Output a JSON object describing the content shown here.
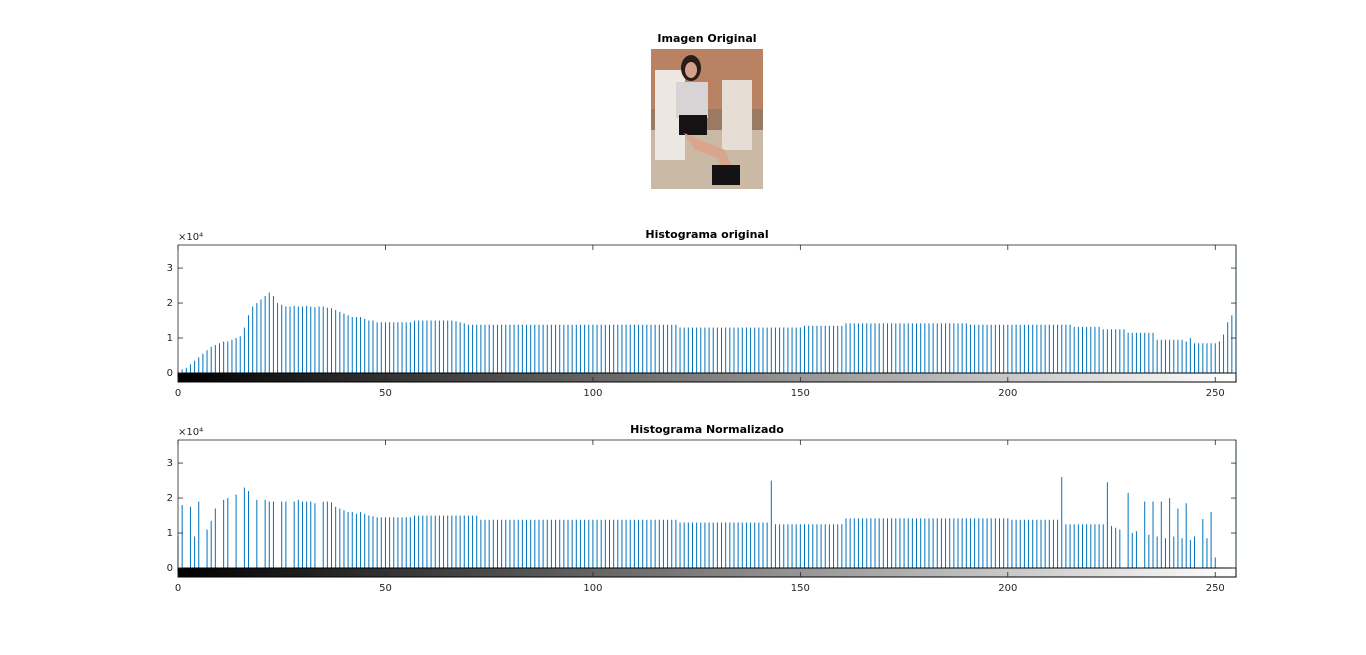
{
  "image": {
    "title": "Imagen Original"
  },
  "chart_data": [
    {
      "type": "stem",
      "title": "Histograma original",
      "color": "#0072bd",
      "y_exponent": "×10⁴",
      "xlim": [
        0,
        255
      ],
      "xticks": [
        0,
        50,
        100,
        150,
        200,
        250
      ],
      "ylim": [
        0,
        36600
      ],
      "yticks": [
        {
          "value": 0,
          "label": "0"
        },
        {
          "value": 10000,
          "label": "1"
        },
        {
          "value": 20000,
          "label": "2"
        },
        {
          "value": 30000,
          "label": "3"
        }
      ],
      "x": [
        0,
        1,
        2,
        3,
        4,
        5,
        6,
        7,
        8,
        9,
        10,
        11,
        12,
        13,
        14,
        15,
        16,
        17,
        18,
        19,
        20,
        21,
        22,
        23,
        24,
        25,
        26,
        27,
        28,
        29,
        30,
        31,
        32,
        33,
        34,
        35,
        36,
        37,
        38,
        39,
        40,
        41,
        42,
        43,
        44,
        45,
        46,
        47,
        48,
        49,
        50,
        51,
        52,
        53,
        54,
        55,
        56,
        57,
        58,
        59,
        60,
        61,
        62,
        63,
        64,
        65,
        66,
        67,
        68,
        69,
        70,
        71,
        72,
        73,
        74,
        75,
        76,
        77,
        78,
        79,
        80,
        81,
        82,
        83,
        84,
        85,
        86,
        87,
        88,
        89,
        90,
        91,
        92,
        93,
        94,
        95,
        96,
        97,
        98,
        99,
        100,
        101,
        102,
        103,
        104,
        105,
        106,
        107,
        108,
        109,
        110,
        111,
        112,
        113,
        114,
        115,
        116,
        117,
        118,
        119,
        120,
        121,
        122,
        123,
        124,
        125,
        126,
        127,
        128,
        129,
        130,
        131,
        132,
        133,
        134,
        135,
        136,
        137,
        138,
        139,
        140,
        141,
        142,
        143,
        144,
        145,
        146,
        147,
        148,
        149,
        150,
        151,
        152,
        153,
        154,
        155,
        156,
        157,
        158,
        159,
        160,
        161,
        162,
        163,
        164,
        165,
        166,
        167,
        168,
        169,
        170,
        171,
        172,
        173,
        174,
        175,
        176,
        177,
        178,
        179,
        180,
        181,
        182,
        183,
        184,
        185,
        186,
        187,
        188,
        189,
        190,
        191,
        192,
        193,
        194,
        195,
        196,
        197,
        198,
        199,
        200,
        201,
        202,
        203,
        204,
        205,
        206,
        207,
        208,
        209,
        210,
        211,
        212,
        213,
        214,
        215,
        216,
        217,
        218,
        219,
        220,
        221,
        222,
        223,
        224,
        225,
        226,
        227,
        228,
        229,
        230,
        231,
        232,
        233,
        234,
        235,
        236,
        237,
        238,
        239,
        240,
        241,
        242,
        243,
        244,
        245,
        246,
        247,
        248,
        249,
        250,
        251,
        252,
        253,
        254,
        255
      ],
      "values": [
        500,
        1000,
        1500,
        2500,
        3500,
        4500,
        5500,
        6500,
        7500,
        8000,
        8500,
        9000,
        9000,
        9500,
        10000,
        10500,
        13000,
        16500,
        19000,
        20000,
        21000,
        22000,
        23000,
        22000,
        20000,
        19500,
        19000,
        19000,
        19200,
        19000,
        19000,
        19200,
        19000,
        18800,
        19000,
        19000,
        18700,
        18500,
        18000,
        17500,
        17000,
        16500,
        16000,
        16000,
        16000,
        15500,
        15000,
        15000,
        14500,
        14500,
        14500,
        14500,
        14500,
        14500,
        14500,
        14500,
        14500,
        15000,
        15000,
        15000,
        15000,
        15000,
        15000,
        15000,
        15000,
        15000,
        15000,
        14800,
        14500,
        14200,
        13800,
        13800,
        13800,
        13800,
        13800,
        13800,
        13800,
        13800,
        13800,
        13800,
        13800,
        13800,
        13800,
        13800,
        13800,
        13800,
        13800,
        13800,
        13800,
        13800,
        13800,
        13800,
        13800,
        13800,
        13800,
        13800,
        13800,
        13800,
        13800,
        13800,
        13800,
        13800,
        13800,
        13800,
        13800,
        13800,
        13800,
        13800,
        13800,
        13800,
        13800,
        13800,
        13800,
        13800,
        13800,
        13800,
        13800,
        13800,
        13800,
        13800,
        13800,
        13000,
        13000,
        13000,
        13000,
        13000,
        13000,
        13000,
        13000,
        13000,
        13000,
        13000,
        13000,
        13000,
        13000,
        13000,
        13000,
        13000,
        13000,
        13000,
        13000,
        13000,
        13000,
        13000,
        13000,
        13000,
        13000,
        13000,
        13000,
        13000,
        13000,
        13500,
        13500,
        13500,
        13500,
        13500,
        13500,
        13500,
        13500,
        13500,
        13500,
        14200,
        14200,
        14200,
        14200,
        14200,
        14200,
        14200,
        14200,
        14200,
        14200,
        14200,
        14200,
        14200,
        14200,
        14200,
        14200,
        14200,
        14200,
        14200,
        14200,
        14200,
        14200,
        14200,
        14200,
        14200,
        14200,
        14200,
        14200,
        14200,
        14200,
        13800,
        13800,
        13800,
        13800,
        13800,
        13800,
        13800,
        13800,
        13800,
        13800,
        13800,
        13800,
        13800,
        13800,
        13800,
        13800,
        13800,
        13800,
        13800,
        13800,
        13800,
        13800,
        13800,
        13800,
        13800,
        13200,
        13200,
        13200,
        13200,
        13200,
        13200,
        13200,
        12500,
        12500,
        12500,
        12500,
        12500,
        12500,
        11500,
        11500,
        11500,
        11500,
        11500,
        11500,
        11500,
        9500,
        9500,
        9500,
        9500,
        9500,
        9500,
        9500,
        9000,
        10000,
        8500,
        8500,
        8500,
        8500,
        8500,
        8500,
        9000,
        11000,
        14500,
        16500,
        40000
      ]
    },
    {
      "type": "stem",
      "title": "Histograma Normalizado",
      "color": "#0072bd",
      "y_exponent": "×10⁴",
      "xlim": [
        0,
        255
      ],
      "xticks": [
        0,
        50,
        100,
        150,
        200,
        250
      ],
      "ylim": [
        0,
        36600
      ],
      "yticks": [
        {
          "value": 0,
          "label": "0"
        },
        {
          "value": 10000,
          "label": "1"
        },
        {
          "value": 20000,
          "label": "2"
        },
        {
          "value": 30000,
          "label": "3"
        }
      ],
      "x": [
        0,
        1,
        2,
        3,
        4,
        5,
        6,
        7,
        8,
        9,
        10,
        11,
        12,
        13,
        14,
        15,
        16,
        17,
        18,
        19,
        20,
        21,
        22,
        23,
        24,
        25,
        26,
        27,
        28,
        29,
        30,
        31,
        32,
        33,
        34,
        35,
        36,
        37,
        38,
        39,
        40,
        41,
        42,
        43,
        44,
        45,
        46,
        47,
        48,
        49,
        50,
        51,
        52,
        53,
        54,
        55,
        56,
        57,
        58,
        59,
        60,
        61,
        62,
        63,
        64,
        65,
        66,
        67,
        68,
        69,
        70,
        71,
        72,
        73,
        74,
        75,
        76,
        77,
        78,
        79,
        80,
        81,
        82,
        83,
        84,
        85,
        86,
        87,
        88,
        89,
        90,
        91,
        92,
        93,
        94,
        95,
        96,
        97,
        98,
        99,
        100,
        101,
        102,
        103,
        104,
        105,
        106,
        107,
        108,
        109,
        110,
        111,
        112,
        113,
        114,
        115,
        116,
        117,
        118,
        119,
        120,
        121,
        122,
        123,
        124,
        125,
        126,
        127,
        128,
        129,
        130,
        131,
        132,
        133,
        134,
        135,
        136,
        137,
        138,
        139,
        140,
        141,
        142,
        143,
        144,
        145,
        146,
        147,
        148,
        149,
        150,
        151,
        152,
        153,
        154,
        155,
        156,
        157,
        158,
        159,
        160,
        161,
        162,
        163,
        164,
        165,
        166,
        167,
        168,
        169,
        170,
        171,
        172,
        173,
        174,
        175,
        176,
        177,
        178,
        179,
        180,
        181,
        182,
        183,
        184,
        185,
        186,
        187,
        188,
        189,
        190,
        191,
        192,
        193,
        194,
        195,
        196,
        197,
        198,
        199,
        200,
        201,
        202,
        203,
        204,
        205,
        206,
        207,
        208,
        209,
        210,
        211,
        212,
        213,
        214,
        215,
        216,
        217,
        218,
        219,
        220,
        221,
        222,
        223,
        224,
        225,
        226,
        227,
        228,
        229,
        230,
        231,
        232,
        233,
        234,
        235,
        236,
        237,
        238,
        239,
        240,
        241,
        242,
        243,
        244,
        245,
        246,
        247,
        248,
        249,
        250,
        251,
        252,
        253,
        254,
        255
      ],
      "values": [
        9000,
        18000,
        0,
        17500,
        9000,
        19000,
        0,
        11000,
        13500,
        17000,
        0,
        19500,
        20000,
        0,
        21000,
        0,
        23000,
        22000,
        0,
        19500,
        0,
        19500,
        19000,
        19000,
        0,
        19000,
        19000,
        0,
        19000,
        19500,
        19000,
        19000,
        19000,
        18500,
        0,
        19000,
        19000,
        18800,
        17500,
        17000,
        16500,
        16000,
        16000,
        15500,
        16000,
        15500,
        15000,
        14800,
        14500,
        14500,
        14500,
        14500,
        14500,
        14500,
        14500,
        14500,
        14500,
        15000,
        15000,
        15000,
        15000,
        15000,
        15000,
        15000,
        15000,
        15000,
        15000,
        15000,
        15000,
        15000,
        15000,
        15000,
        15000,
        13800,
        13800,
        13800,
        13800,
        13800,
        13800,
        13800,
        13800,
        13800,
        13800,
        13800,
        13800,
        13800,
        13800,
        13800,
        13800,
        13800,
        13800,
        13800,
        13800,
        13800,
        13800,
        13800,
        13800,
        13800,
        13800,
        13800,
        13800,
        13800,
        13800,
        13800,
        13800,
        13800,
        13800,
        13800,
        13800,
        13800,
        13800,
        13800,
        13800,
        13800,
        13800,
        13800,
        13800,
        13800,
        13800,
        13800,
        13800,
        13000,
        13000,
        13000,
        13000,
        13000,
        13000,
        13000,
        13000,
        13000,
        13000,
        13000,
        13000,
        13000,
        13000,
        13000,
        13000,
        13000,
        13000,
        13000,
        13000,
        13000,
        13000,
        25000,
        12500,
        12500,
        12500,
        12500,
        12500,
        12500,
        12500,
        12500,
        12500,
        12500,
        12500,
        12500,
        12500,
        12500,
        12500,
        12500,
        12500,
        14200,
        14200,
        14200,
        14200,
        14200,
        14200,
        14200,
        14200,
        14200,
        14200,
        14200,
        14200,
        14200,
        14200,
        14200,
        14200,
        14200,
        14200,
        14200,
        14200,
        14200,
        14200,
        14200,
        14200,
        14200,
        14200,
        14200,
        14200,
        14200,
        14200,
        14200,
        14200,
        14200,
        14200,
        14200,
        14200,
        14200,
        14200,
        14200,
        14200,
        13800,
        13800,
        13800,
        13800,
        13800,
        13800,
        13800,
        13800,
        13800,
        13800,
        13800,
        13800,
        26000,
        12500,
        12500,
        12500,
        12500,
        12500,
        12500,
        12500,
        12500,
        12500,
        12500,
        24500,
        12000,
        11500,
        11000,
        0,
        21500,
        10000,
        10500,
        0,
        19000,
        9500,
        19000,
        9000,
        19000,
        8500,
        20000,
        9000,
        17000,
        8500,
        18500,
        8000,
        9000,
        0,
        14000,
        8500,
        16000,
        3000,
        0,
        0,
        0,
        0,
        40000
      ]
    }
  ]
}
